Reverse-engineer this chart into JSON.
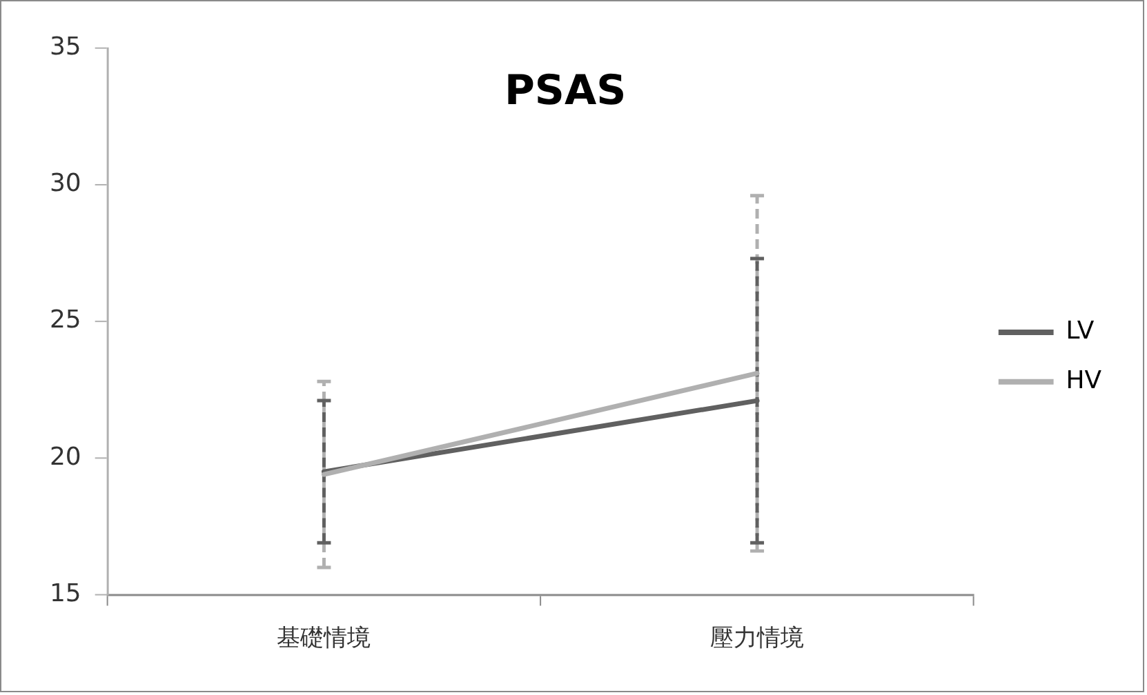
{
  "chart_data": {
    "type": "line",
    "title": "PSAS",
    "categories": [
      "基礎情境",
      "壓力情境"
    ],
    "series": [
      {
        "name": "LV",
        "color": "#606060",
        "values": [
          19.5,
          22.1
        ],
        "errors": [
          2.6,
          5.2
        ]
      },
      {
        "name": "HV",
        "color": "#b0b0b0",
        "values": [
          19.4,
          23.1
        ],
        "errors": [
          3.4,
          6.5
        ]
      }
    ],
    "ylim": [
      15,
      35
    ],
    "yticks": [
      15,
      20,
      25,
      30,
      35
    ],
    "grid": false,
    "legend": "right",
    "marker": "none",
    "line_style": "solid"
  }
}
